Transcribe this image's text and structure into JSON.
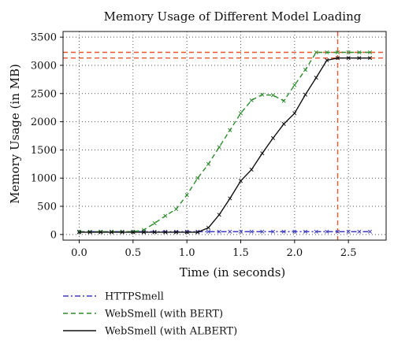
{
  "chart_data": {
    "type": "line",
    "title": "Memory Usage of Different Model Loading",
    "xlabel": "Time (in seconds)",
    "ylabel": "Memory Usage (in MB)",
    "xlim": [
      -0.15,
      2.85
    ],
    "ylim": [
      -100,
      3600
    ],
    "xticks": [
      0.0,
      0.5,
      1.0,
      1.5,
      2.0,
      2.5
    ],
    "xtick_labels": [
      "0.0",
      "0.5",
      "1.0",
      "1.5",
      "2.0",
      "2.5"
    ],
    "yticks": [
      0,
      500,
      1000,
      1500,
      2000,
      2500,
      3000,
      3500
    ],
    "ytick_labels": [
      "0",
      "500",
      "1000",
      "1500",
      "2000",
      "2500",
      "3000",
      "3500"
    ],
    "grid": true,
    "legend_position": "bottom-left, below plot",
    "series": [
      {
        "name": "HTTPSmell",
        "style": "dash-dot",
        "color": "#3b3bbf",
        "x": [
          0.0,
          0.1,
          0.2,
          0.3,
          0.4,
          0.5,
          0.6,
          0.7,
          0.8,
          0.9,
          1.0,
          1.1,
          1.2,
          1.3,
          1.4,
          1.5,
          1.6,
          1.7,
          1.8,
          1.9,
          2.0,
          2.1,
          2.2,
          2.3,
          2.4,
          2.5,
          2.6,
          2.7
        ],
        "y": [
          50,
          50,
          50,
          50,
          50,
          50,
          50,
          50,
          50,
          50,
          50,
          50,
          50,
          50,
          50,
          50,
          50,
          50,
          50,
          50,
          50,
          50,
          50,
          50,
          50,
          50,
          50,
          50
        ]
      },
      {
        "name": "WebSmell (with BERT)",
        "style": "dashed",
        "color": "#2e8b2e",
        "x": [
          0.0,
          0.1,
          0.2,
          0.3,
          0.4,
          0.5,
          0.6,
          0.7,
          0.8,
          0.9,
          1.0,
          1.1,
          1.2,
          1.3,
          1.4,
          1.5,
          1.6,
          1.7,
          1.8,
          1.9,
          2.0,
          2.1,
          2.2,
          2.3,
          2.4,
          2.5,
          2.6,
          2.7
        ],
        "y": [
          50,
          50,
          50,
          50,
          50,
          50,
          80,
          200,
          330,
          450,
          700,
          1000,
          1250,
          1550,
          1850,
          2150,
          2380,
          2480,
          2470,
          2370,
          2650,
          2920,
          3230,
          3230,
          3230,
          3230,
          3230,
          3230
        ]
      },
      {
        "name": "WebSmell (with ALBERT)",
        "style": "solid",
        "color": "#111111",
        "x": [
          0.0,
          0.1,
          0.2,
          0.3,
          0.4,
          0.5,
          0.6,
          0.7,
          0.8,
          0.9,
          1.0,
          1.1,
          1.2,
          1.3,
          1.4,
          1.5,
          1.6,
          1.7,
          1.8,
          1.9,
          2.0,
          2.1,
          2.2,
          2.3,
          2.4,
          2.5,
          2.6,
          2.7
        ],
        "y": [
          40,
          40,
          40,
          40,
          40,
          40,
          40,
          40,
          40,
          40,
          40,
          40,
          120,
          350,
          640,
          950,
          1150,
          1440,
          1710,
          1960,
          2150,
          2480,
          2780,
          3090,
          3130,
          3130,
          3130,
          3130
        ]
      }
    ],
    "reference_lines": {
      "color": "#e8552f",
      "horizontal_y": [
        3230,
        3130
      ],
      "vertical_x": [
        2.4
      ]
    }
  }
}
